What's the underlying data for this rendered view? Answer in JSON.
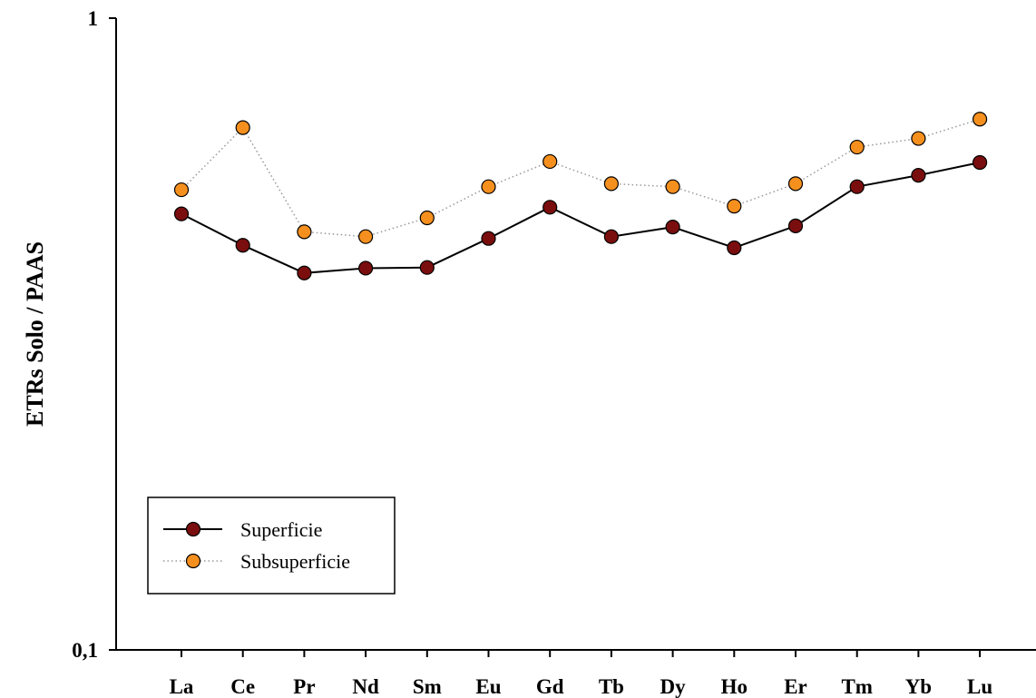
{
  "chart_data": {
    "type": "line",
    "ylabel": "ETRs Solo / PAAS",
    "xlabel": "",
    "title": "",
    "yscale": "log",
    "ylim": [
      0.1,
      1
    ],
    "yticks": [
      {
        "value": 0.1,
        "label": "0,1"
      },
      {
        "value": 1,
        "label": "1"
      }
    ],
    "categories": [
      "La",
      "Ce",
      "Pr",
      "Nd",
      "Sm",
      "Eu",
      "Gd",
      "Tb",
      "Dy",
      "Ho",
      "Er",
      "Tm",
      "Yb",
      "Lu"
    ],
    "series": [
      {
        "name": "Superficie",
        "style": "solid",
        "line_color": "#000000",
        "marker_color": "#7a0e0e",
        "values": [
          0.49,
          0.437,
          0.395,
          0.402,
          0.403,
          0.448,
          0.502,
          0.451,
          0.467,
          0.433,
          0.469,
          0.541,
          0.564,
          0.591
        ]
      },
      {
        "name": "Subsuperficie",
        "style": "dotted",
        "line_color": "#999999",
        "marker_color": "#f5901e",
        "values": [
          0.535,
          0.671,
          0.459,
          0.451,
          0.483,
          0.541,
          0.593,
          0.547,
          0.541,
          0.504,
          0.547,
          0.625,
          0.645,
          0.692
        ]
      }
    ],
    "grid": false,
    "legend": {
      "position": "bottom-left"
    }
  }
}
